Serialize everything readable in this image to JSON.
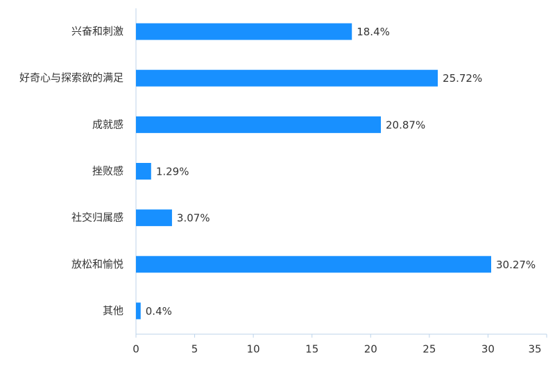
{
  "chart_data": {
    "type": "bar",
    "orientation": "horizontal",
    "categories": [
      "兴奋和刺激",
      "好奇心与探索欲的满足",
      "成就感",
      "挫败感",
      "社交归属感",
      "放松和愉悦",
      "其他"
    ],
    "values": [
      18.4,
      25.72,
      20.87,
      1.29,
      3.07,
      30.27,
      0.4
    ],
    "value_labels": [
      "18.4%",
      "25.72%",
      "20.87%",
      "1.29%",
      "3.07%",
      "30.27%",
      "0.4%"
    ],
    "color": "#1890ff",
    "xlim": [
      0,
      35
    ],
    "xticks": [
      0,
      5,
      10,
      15,
      20,
      25,
      30,
      35
    ]
  }
}
